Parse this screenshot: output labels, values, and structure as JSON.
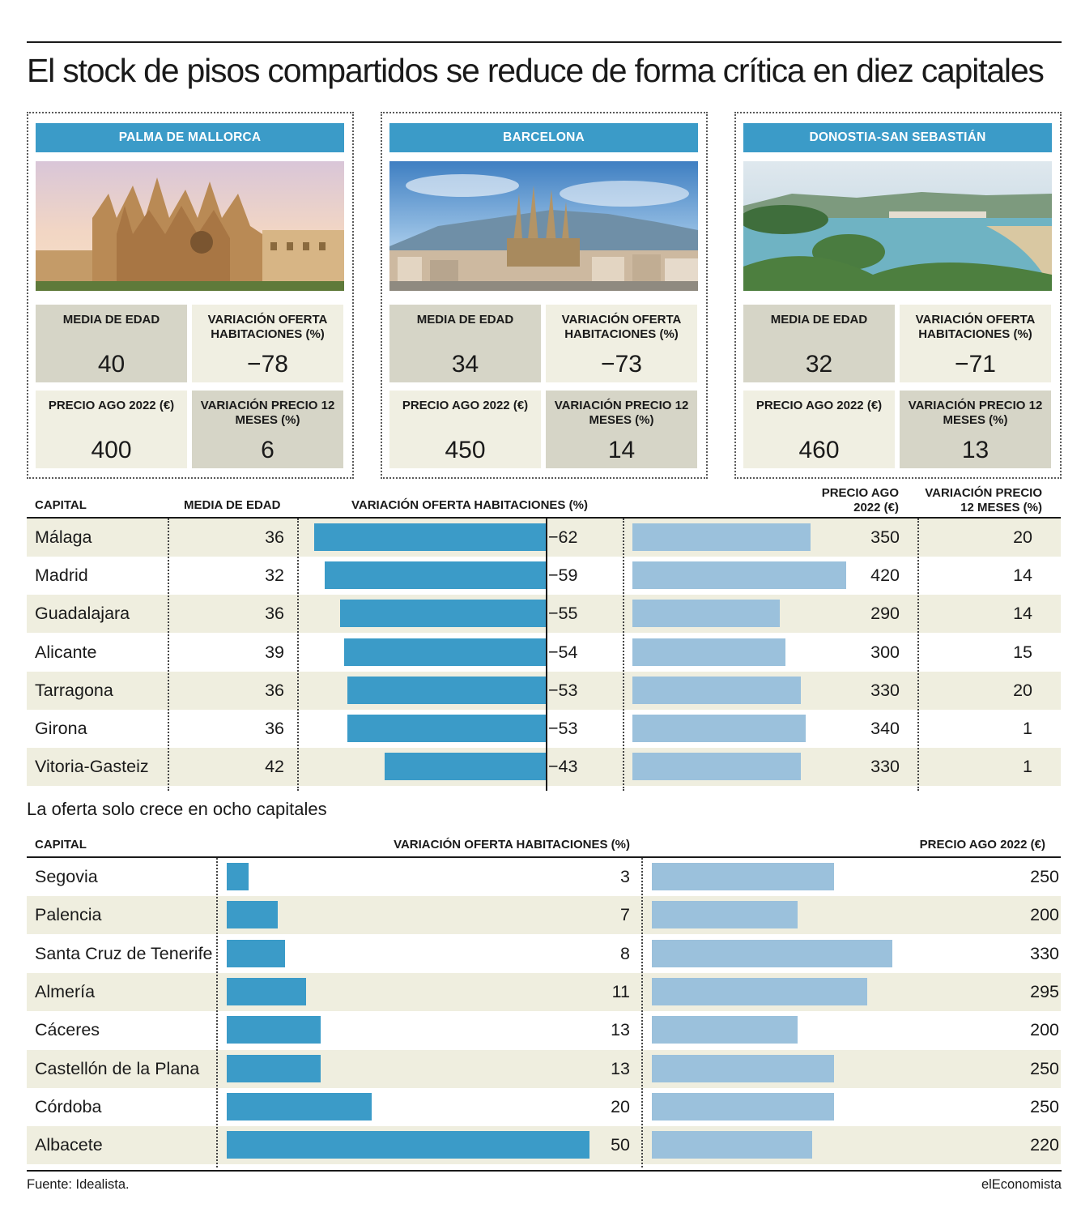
{
  "title": "El stock de pisos compartidos se reduce de forma crítica en diez capitales",
  "cities": [
    {
      "name": "PALMA DE MALLORCA",
      "image": "cathedral-photo",
      "media_edad": "40",
      "variacion_oferta": "−78",
      "precio": "400",
      "variacion_precio": "6"
    },
    {
      "name": "BARCELONA",
      "image": "sagrada-familia-photo",
      "media_edad": "34",
      "variacion_oferta": "−73",
      "precio": "450",
      "variacion_precio": "14"
    },
    {
      "name": "DONOSTIA-SAN SEBASTIÁN",
      "image": "la-concha-bay-photo",
      "media_edad": "32",
      "variacion_oferta": "−71",
      "precio": "460",
      "variacion_precio": "13"
    }
  ],
  "card_labels": {
    "media_edad": "MEDIA DE EDAD",
    "variacion_oferta": "VARIACIÓN OFERTA HABITACIONES (%)",
    "precio": "PRECIO AGO 2022 (€)",
    "variacion_precio": "VARIACIÓN PRECIO 12 MESES (%)"
  },
  "table1": {
    "headers": {
      "capital": "CAPITAL",
      "media_edad": "MEDIA DE EDAD",
      "variacion_oferta": "VARIACIÓN OFERTA HABITACIONES (%)",
      "precio_line1": "PRECIO AGO",
      "precio_line2": "2022 (€)",
      "variacion_precio_line1": "VARIACIÓN PRECIO",
      "variacion_precio_line2": "12 MESES (%)"
    }
  },
  "subtitle": "La oferta solo crece en ocho capitales",
  "table2": {
    "headers": {
      "capital": "CAPITAL",
      "variacion_oferta": "VARIACIÓN OFERTA HABITACIONES (%)",
      "precio": "PRECIO AGO 2022 (€)"
    }
  },
  "chart_data": [
    {
      "type": "bar",
      "title": "El stock de pisos compartidos se reduce de forma crítica en diez capitales",
      "categories": [
        "Málaga",
        "Madrid",
        "Guadalajara",
        "Alicante",
        "Tarragona",
        "Girona",
        "Vitoria-Gasteiz"
      ],
      "series": [
        {
          "name": "MEDIA DE EDAD",
          "values": [
            36,
            32,
            36,
            39,
            36,
            36,
            42
          ]
        },
        {
          "name": "VARIACIÓN OFERTA HABITACIONES (%)",
          "values": [
            -62,
            -59,
            -55,
            -54,
            -53,
            -53,
            -43
          ]
        },
        {
          "name": "PRECIO AGO 2022 (€)",
          "values": [
            350,
            420,
            290,
            300,
            330,
            340,
            330
          ]
        },
        {
          "name": "VARIACIÓN PRECIO 12 MESES (%)",
          "values": [
            20,
            14,
            14,
            15,
            20,
            1,
            1
          ]
        }
      ],
      "oferta_labels": [
        "−62",
        "−59",
        "−55",
        "−54",
        "−53",
        "−53",
        "−43"
      ]
    },
    {
      "type": "bar",
      "title": "La oferta solo crece en ocho capitales",
      "categories": [
        "Segovia",
        "Palencia",
        "Santa Cruz de Tenerife",
        "Almería",
        "Cáceres",
        "Castellón de la Plana",
        "Córdoba",
        "Albacete"
      ],
      "series": [
        {
          "name": "VARIACIÓN OFERTA HABITACIONES (%)",
          "values": [
            3,
            7,
            8,
            11,
            13,
            13,
            20,
            50
          ]
        },
        {
          "name": "PRECIO AGO 2022 (€)",
          "values": [
            250,
            200,
            330,
            295,
            200,
            250,
            250,
            220
          ]
        }
      ]
    }
  ],
  "footer": {
    "source": "Fuente: Idealista.",
    "brand": "elEconomista"
  },
  "colors": {
    "bar_dark": "#3b9bc8",
    "bar_light": "#9bc1dc",
    "row_shade": "#efeedf",
    "stat_dark": "#d6d5c7",
    "stat_light": "#f0efe2"
  }
}
